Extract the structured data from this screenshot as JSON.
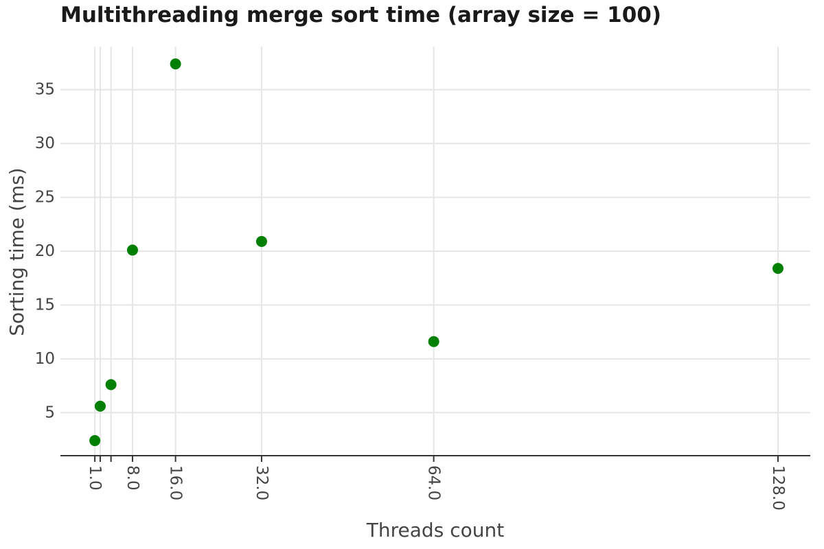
{
  "chart_data": {
    "type": "scatter",
    "title": "Multithreading merge sort time (array size = 100)",
    "xlabel": "Threads count",
    "ylabel": "Sorting time (ms)",
    "x_ticks": [
      1,
      2,
      4,
      8,
      16,
      32,
      64,
      128
    ],
    "x_tick_labels": [
      "1.0",
      "",
      "",
      "8.0",
      "16.0",
      "32.0",
      "64.0",
      "128.0"
    ],
    "y_ticks": [
      5,
      10,
      15,
      20,
      25,
      30,
      35
    ],
    "y_tick_labels": [
      "5",
      "10",
      "15",
      "20",
      "25",
      "30",
      "35"
    ],
    "xlim": [
      -5.4,
      134
    ],
    "ylim": [
      1.0,
      39.0
    ],
    "grid": true,
    "marker_color": "#008000",
    "points": [
      {
        "x": 1,
        "y": 2.4
      },
      {
        "x": 2,
        "y": 5.6
      },
      {
        "x": 4,
        "y": 7.6
      },
      {
        "x": 8,
        "y": 20.1
      },
      {
        "x": 16,
        "y": 37.4
      },
      {
        "x": 32,
        "y": 20.9
      },
      {
        "x": 64,
        "y": 11.6
      },
      {
        "x": 128,
        "y": 18.4
      }
    ]
  }
}
